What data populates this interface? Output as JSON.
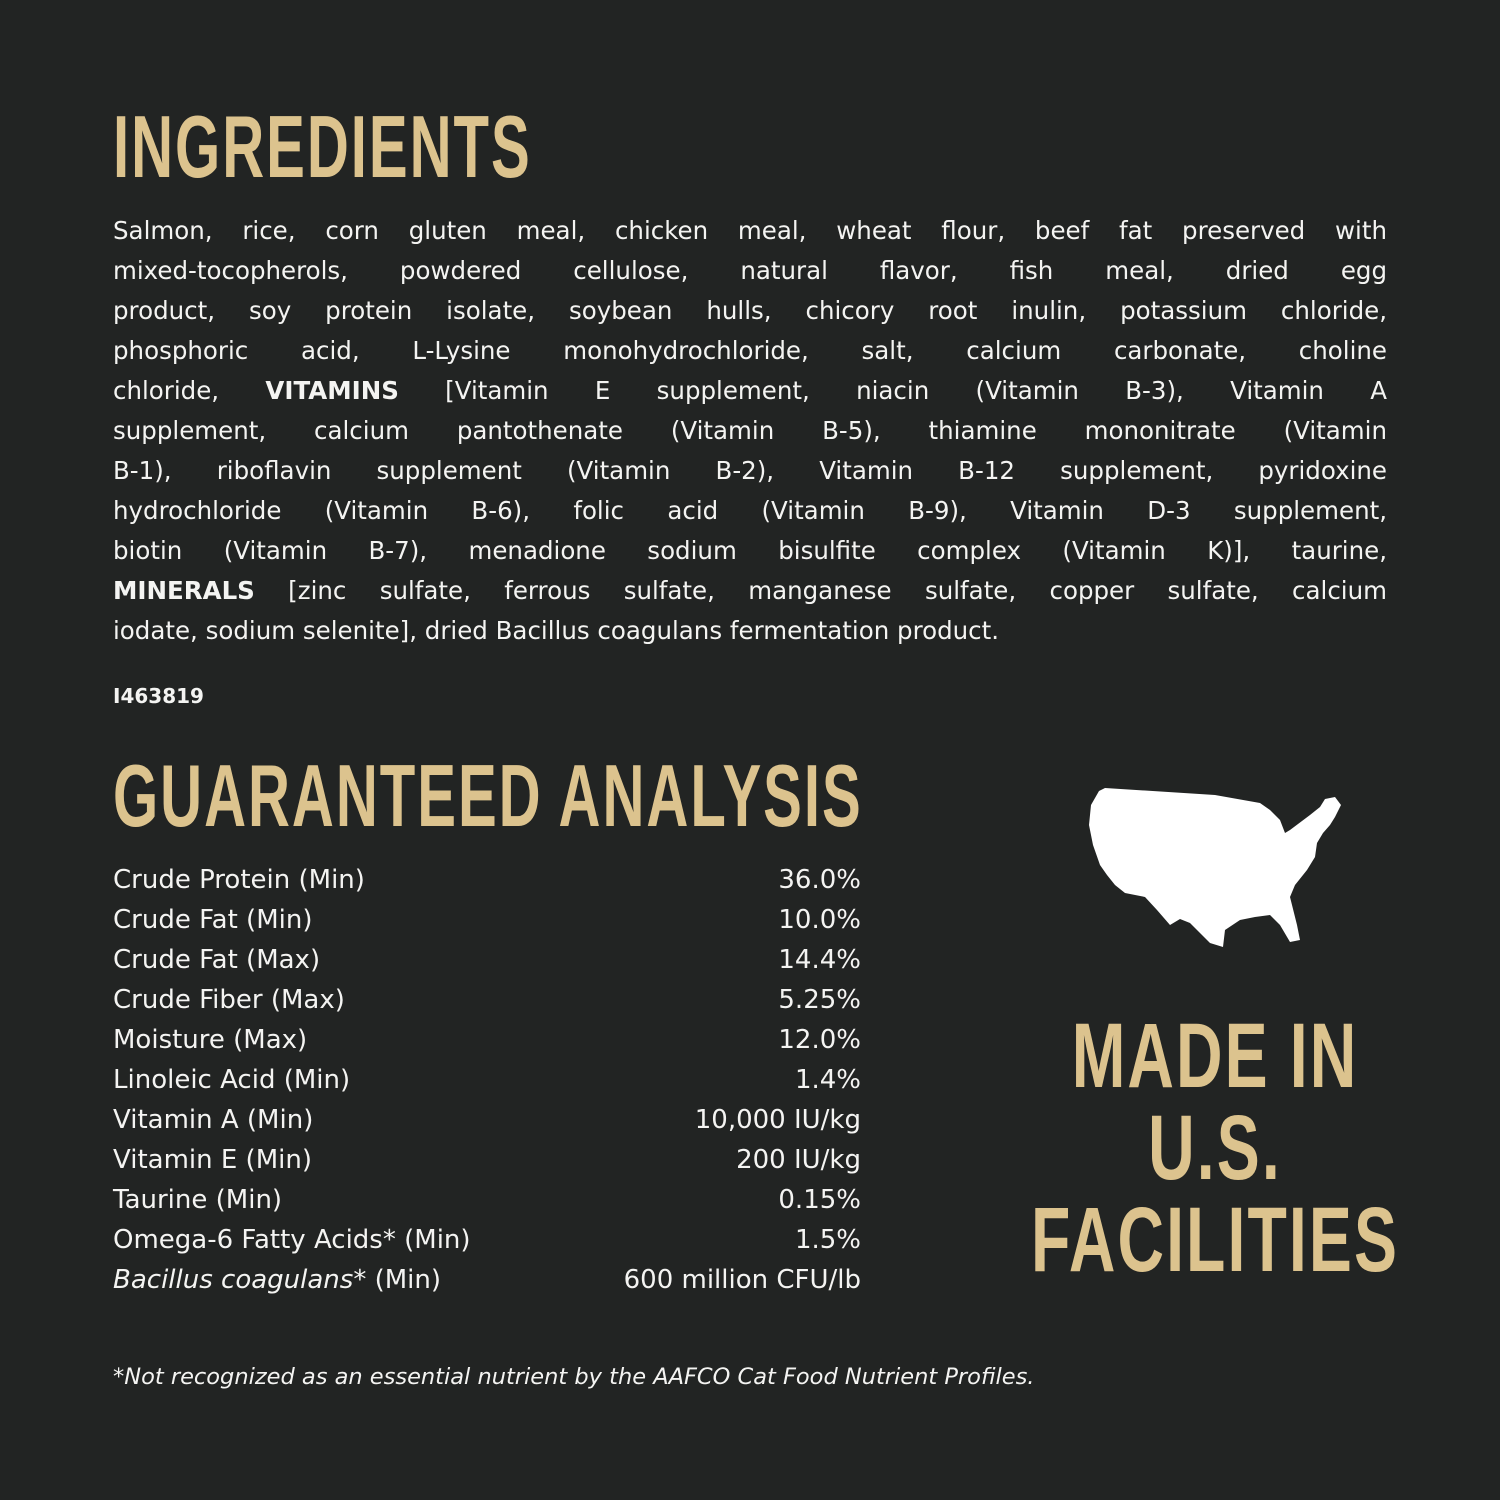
{
  "ingredients": {
    "title": "INGREDIENTS",
    "lines": [
      {
        "pre": "Salmon, rice, corn gluten meal, chicken meal, wheat flour, beef fat preserved with"
      },
      {
        "pre": "mixed-tocopherols, powdered cellulose, natural flavor, fish meal, dried egg"
      },
      {
        "pre": "product, soy protein isolate, soybean hulls, chicory root inulin, potassium chloride,"
      },
      {
        "pre": "phosphoric acid, L-Lysine monohydrochloride, salt, calcium carbonate, choline"
      },
      {
        "pre": "chloride, ",
        "bold": "VITAMINS",
        "post": " [Vitamin E supplement, niacin (Vitamin B-3), Vitamin A"
      },
      {
        "pre": "supplement, calcium pantothenate (Vitamin B-5), thiamine mononitrate (Vitamin"
      },
      {
        "pre": "B-1), riboflavin supplement (Vitamin B-2), Vitamin B-12 supplement, pyridoxine"
      },
      {
        "pre": "hydrochloride (Vitamin B-6), folic acid (Vitamin B-9), Vitamin D-3 supplement,"
      },
      {
        "pre": "biotin (Vitamin B-7), menadione sodium bisulfite complex (Vitamin K)], taurine,"
      },
      {
        "bold": "MINERALS",
        "post": " [zinc sulfate, ferrous sulfate, manganese sulfate, copper sulfate, calcium"
      },
      {
        "pre": "iodate, sodium selenite], dried Bacillus coagulans fermentation product."
      }
    ],
    "code": "I463819"
  },
  "analysis": {
    "title": "GUARANTEED ANALYSIS",
    "rows": [
      {
        "label": "Crude Protein (Min)",
        "value": "36.0%"
      },
      {
        "label": "Crude Fat (Min)",
        "value": "10.0%"
      },
      {
        "label": "Crude Fat (Max)",
        "value": "14.4%"
      },
      {
        "label": "Crude Fiber (Max)",
        "value": "5.25%"
      },
      {
        "label": "Moisture (Max)",
        "value": "12.0%"
      },
      {
        "label": "Linoleic Acid (Min)",
        "value": "1.4%"
      },
      {
        "label": "Vitamin A (Min)",
        "value": "10,000 IU/kg"
      },
      {
        "label": "Vitamin E (Min)",
        "value": "200 IU/kg"
      },
      {
        "label": "Taurine (Min)",
        "value": "0.15%"
      },
      {
        "label": "Omega-6 Fatty Acids* (Min)",
        "value": "1.5%"
      },
      {
        "italic": "Bacillus coagulans",
        "label": "* (Min)",
        "value": "600 million CFU/lb"
      }
    ],
    "footnote": "*Not recognized as an essential nutrient by the AAFCO Cat Food Nutrient Profiles."
  },
  "badge": {
    "icon": "usa-map-icon",
    "lines": [
      "MADE IN",
      "U.S.",
      "FACILITIES"
    ]
  },
  "colors": {
    "background": "#222423",
    "accent": "#dcc38e",
    "text": "#f4f4f2"
  }
}
